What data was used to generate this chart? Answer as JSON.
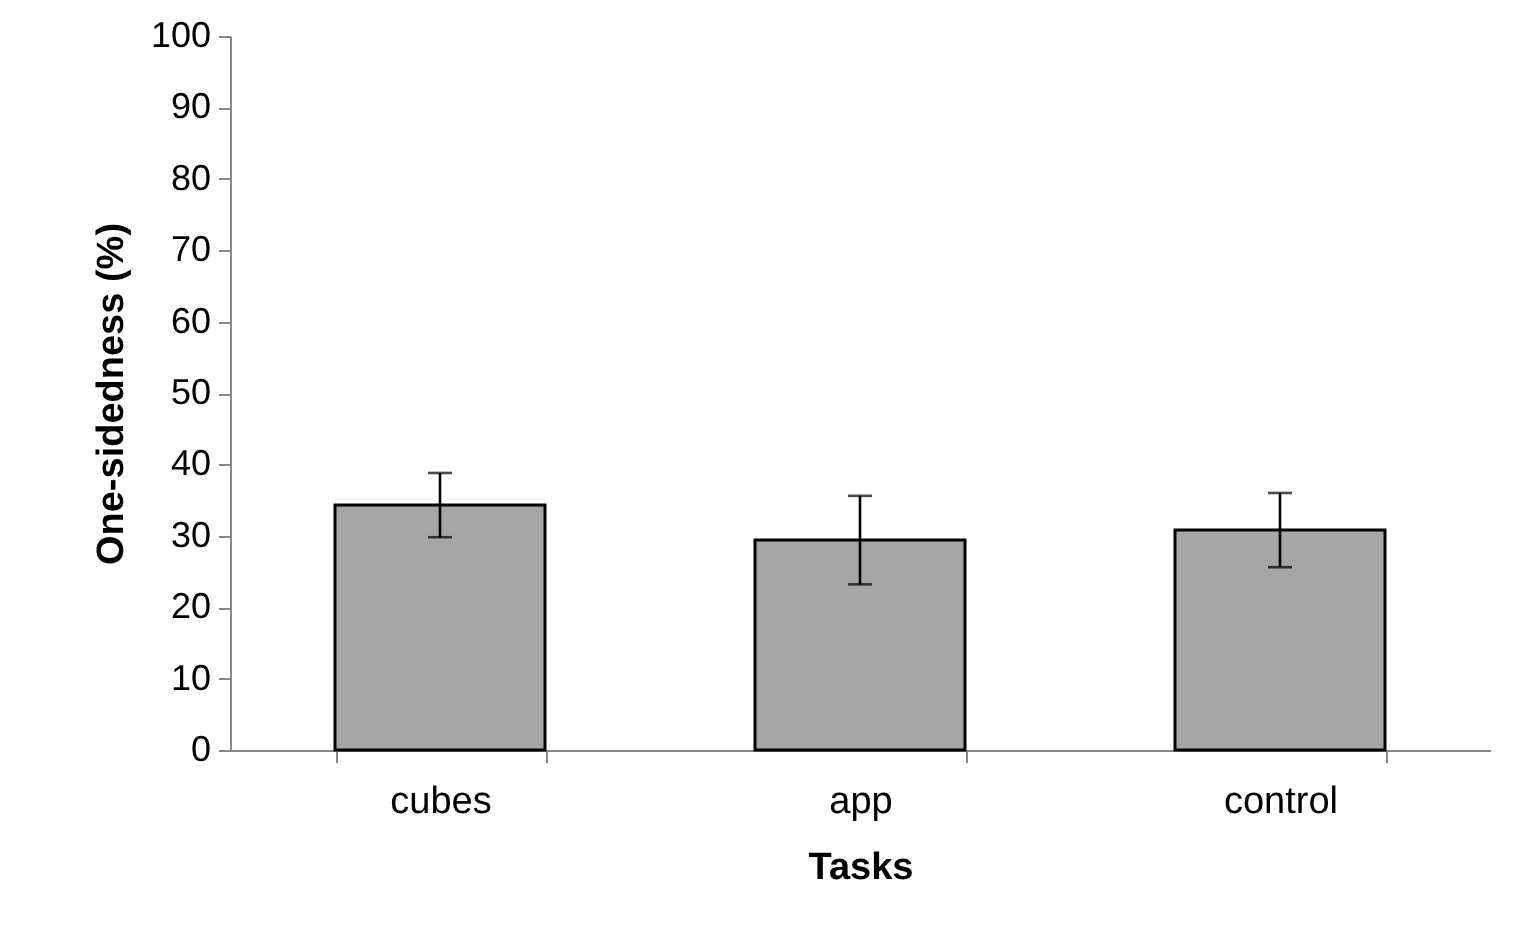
{
  "chart_data": {
    "type": "bar",
    "xlabel": "Tasks",
    "ylabel": "One-sidedness (%)",
    "categories": [
      "cubes",
      "app",
      "control"
    ],
    "values": [
      34.3,
      29.4,
      30.8
    ],
    "errors": [
      4.5,
      6.2,
      5.2
    ],
    "color": "#a6a6a6",
    "ylim": [
      0,
      100
    ],
    "yticks": [
      0,
      10,
      20,
      30,
      40,
      50,
      60,
      70,
      80,
      90,
      100
    ]
  }
}
